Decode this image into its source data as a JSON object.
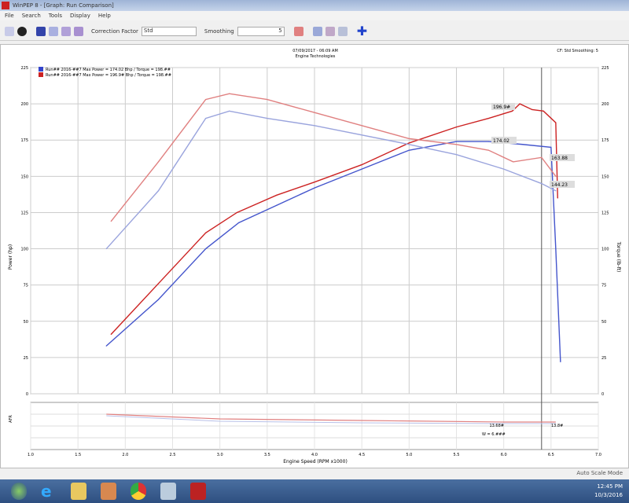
{
  "window": {
    "title": "WinPEP 8 - [Graph: Run Comparison]"
  },
  "menu": [
    "File",
    "Search",
    "Tools",
    "Display",
    "Help"
  ],
  "toolbar": {
    "correction_label": "Correction Factor",
    "correction_value": "Std",
    "smoothing_label": "Smoothing",
    "smoothing_value": "5"
  },
  "chart": {
    "header_line1": "07/09/2017 - 06:09 AM",
    "header_line2": "Engine Technologies",
    "header_right": "CF: Std  Smoothing: 5",
    "legend": [
      {
        "text": "Run## 2016-##7 Max Power = 174.02 Bhp / Torque = 198.##",
        "color": "#3344cc"
      },
      {
        "text": "Run## 2016-##7 Max Power = 196.9# Bhp / Torque = 198.##",
        "color": "#cc2222"
      }
    ],
    "left_axis_label": "Power (hp)",
    "right_axis_label": "Torque (lb-ft)",
    "x_axis_label": "Engine Speed (RPM x1000)",
    "bottom_axis_label": "AFR",
    "value_labels": [
      {
        "text": "196.9#",
        "series": "red-power"
      },
      {
        "text": "174.02",
        "series": "blue-power"
      },
      {
        "text": "163.88",
        "series": "red-torque"
      },
      {
        "text": "144.23",
        "series": "blue-torque"
      }
    ],
    "afr_labels": [
      "13.68#",
      "13.8#"
    ],
    "afr_delta": "W = 6.###"
  },
  "chart_data": {
    "type": "line",
    "xlabel": "Engine Speed (RPM x1000)",
    "ylabel": "Power (hp)",
    "y2label": "Torque (lb-ft)",
    "xlim": [
      1.0,
      7.0
    ],
    "ylim": [
      0,
      225
    ],
    "xticks": [
      "1.0",
      "1.5",
      "2.0",
      "2.5",
      "3.0",
      "3.5",
      "4.0",
      "4.5",
      "5.0",
      "5.5",
      "6.0",
      "6.5",
      "7.0"
    ],
    "yticks": [
      "0",
      "25",
      "50",
      "75",
      "100",
      "125",
      "150",
      "175",
      "200",
      "225"
    ],
    "grid": true,
    "legend_position": "top-left",
    "series": [
      {
        "id": "red-power",
        "color": "#cc2222",
        "x": [
          1.85,
          2.35,
          2.85,
          3.18,
          3.6,
          4.0,
          4.5,
          5.0,
          5.5,
          5.84,
          6.09,
          6.17,
          6.3,
          6.42,
          6.55,
          6.57
        ],
        "y": [
          41,
          76,
          111,
          125,
          137,
          146,
          158,
          173,
          184,
          190,
          195,
          200,
          196,
          195,
          187,
          135
        ]
      },
      {
        "id": "blue-power",
        "color": "#4455cc",
        "x": [
          1.8,
          2.35,
          2.85,
          3.2,
          3.6,
          4.0,
          4.5,
          5.0,
          5.5,
          5.84,
          6.2,
          6.5,
          6.55,
          6.6
        ],
        "y": [
          33,
          65,
          100,
          118,
          130,
          142,
          155,
          168,
          174,
          174,
          172,
          170,
          100,
          22
        ]
      },
      {
        "id": "red-torque",
        "color": "#e08080",
        "x": [
          1.85,
          2.35,
          2.85,
          3.1,
          3.5,
          4.0,
          4.5,
          5.0,
          5.5,
          5.84,
          6.1,
          6.4,
          6.55
        ],
        "y": [
          119,
          160,
          203,
          207,
          203,
          194,
          185,
          176,
          172,
          168,
          160,
          163,
          150
        ]
      },
      {
        "id": "blue-torque",
        "color": "#9aa4dd",
        "x": [
          1.8,
          2.35,
          2.85,
          3.1,
          3.5,
          4.0,
          5.0,
          5.5,
          6.0,
          6.4,
          6.55
        ],
        "y": [
          100,
          140,
          190,
          195,
          190,
          185,
          172,
          165,
          155,
          145,
          140
        ]
      }
    ]
  },
  "status": {
    "mode": "Auto Scale Mode"
  },
  "tray": {
    "time": "12:45 PM",
    "date": "10/3/2016"
  },
  "colors": {
    "red": "#cc2222",
    "blue": "#3344cc",
    "taskbar": "#2e4f80"
  }
}
